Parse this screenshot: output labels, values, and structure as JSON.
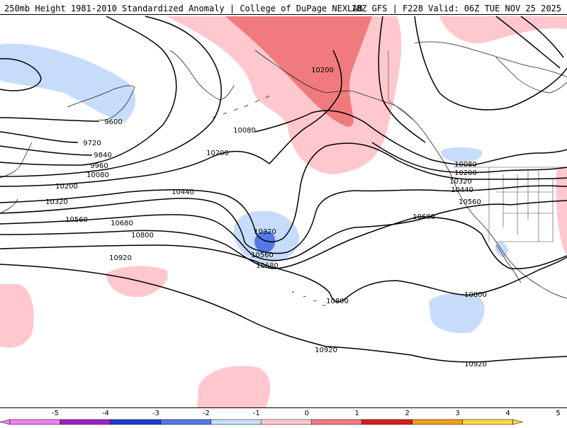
{
  "header": {
    "left_title": "250mb Height 1981-2010 Standardized Anomaly | College of DuPage NEXLAB",
    "right_title": "18Z GFS | F228 Valid: 06Z TUE NOV 25 2025"
  },
  "contours": [
    {
      "label": "9600"
    },
    {
      "label": "9720"
    },
    {
      "label": "9840"
    },
    {
      "label": "9960"
    },
    {
      "label": "10080"
    },
    {
      "label": "10200"
    },
    {
      "label": "10320"
    },
    {
      "label": "10440"
    },
    {
      "label": "10560"
    },
    {
      "label": "10680"
    },
    {
      "label": "10800"
    },
    {
      "label": "10920"
    }
  ],
  "colorbar": {
    "ticks": [
      "-5",
      "-4",
      "-3",
      "-2",
      "-1",
      "0",
      "1",
      "2",
      "3",
      "4",
      "5"
    ],
    "colors": [
      "#f080f0",
      "#9a22c8",
      "#1e3fd0",
      "#5577e8",
      "#c7dcfa",
      "#ffffff",
      "#ffc7ce",
      "#f07a7e",
      "#d81e1e",
      "#f0a018",
      "#ffd84a"
    ]
  }
}
